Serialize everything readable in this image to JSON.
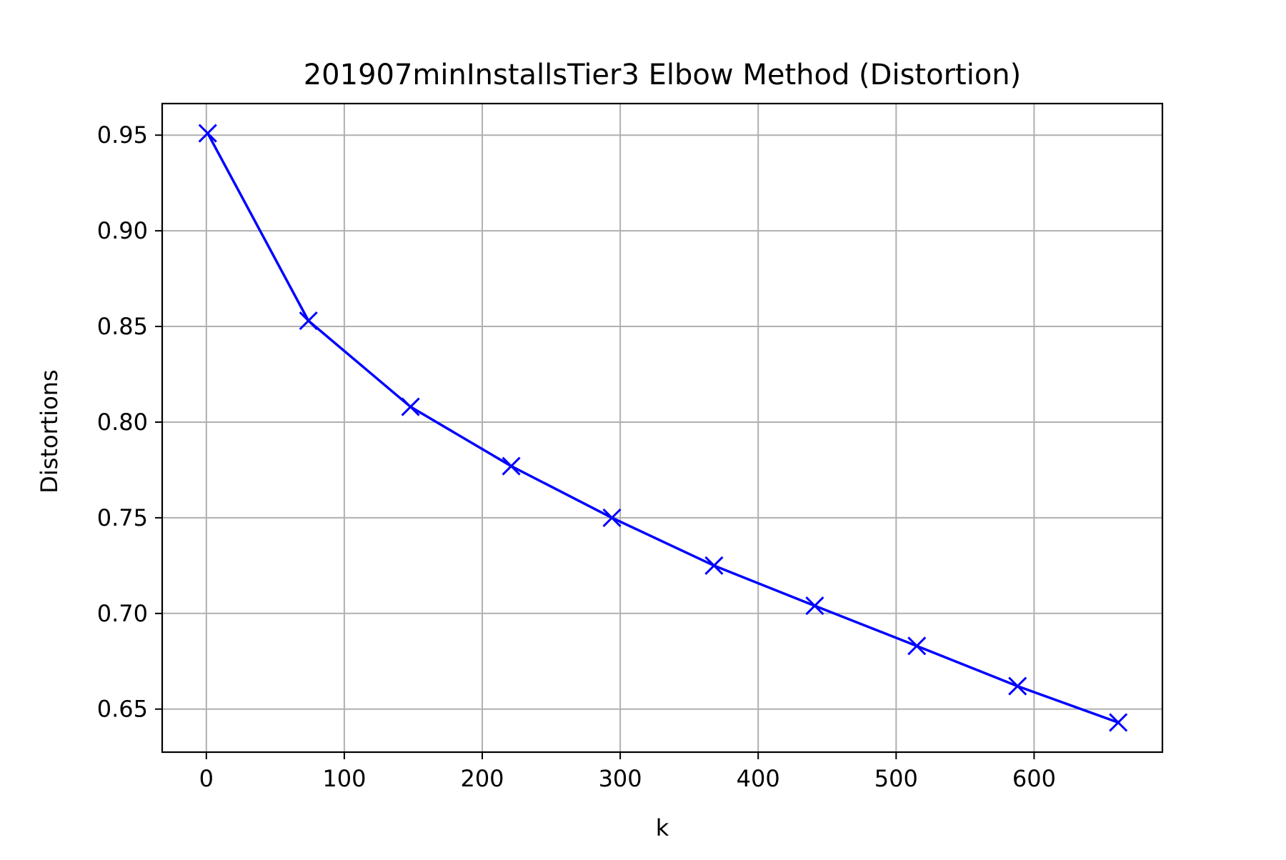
{
  "chart_data": {
    "type": "line",
    "title": "201907minInstallsTier3 Elbow Method (Distortion)",
    "xlabel": "k",
    "ylabel": "Distortions",
    "xlim": [
      -32,
      693
    ],
    "ylim": [
      0.6275,
      0.9665
    ],
    "xticks": [
      0,
      100,
      200,
      300,
      400,
      500,
      600
    ],
    "xtick_labels": [
      "0",
      "100",
      "200",
      "300",
      "400",
      "500",
      "600"
    ],
    "yticks": [
      0.65,
      0.7,
      0.75,
      0.8,
      0.85,
      0.9,
      0.95
    ],
    "ytick_labels": [
      "0.65",
      "0.70",
      "0.75",
      "0.80",
      "0.85",
      "0.90",
      "0.95"
    ],
    "grid": true,
    "series": [
      {
        "color": "#0000ff",
        "marker": "x",
        "x": [
          1,
          74,
          148,
          221,
          294,
          368,
          441,
          515,
          588,
          661
        ],
        "y": [
          0.951,
          0.853,
          0.808,
          0.777,
          0.75,
          0.725,
          0.704,
          0.683,
          0.662,
          0.643
        ]
      }
    ],
    "grid_color": "#b0b0b0"
  }
}
